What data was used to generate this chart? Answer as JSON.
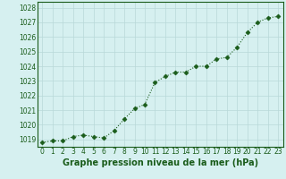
{
  "x": [
    0,
    1,
    2,
    3,
    4,
    5,
    6,
    7,
    8,
    9,
    10,
    11,
    12,
    13,
    14,
    15,
    16,
    17,
    18,
    19,
    20,
    21,
    22,
    23
  ],
  "y": [
    1018.8,
    1018.9,
    1018.9,
    1019.2,
    1019.3,
    1019.2,
    1019.1,
    1019.6,
    1020.4,
    1021.1,
    1021.4,
    1022.9,
    1023.3,
    1023.6,
    1023.6,
    1024.0,
    1024.0,
    1024.5,
    1024.6,
    1025.3,
    1026.3,
    1027.0,
    1027.3,
    1027.4
  ],
  "line_color": "#1a5c1a",
  "marker": "D",
  "marker_size": 2.5,
  "background_color": "#d6f0f0",
  "grid_color": "#b8d8d8",
  "xlabel": "Graphe pression niveau de la mer (hPa)",
  "xlabel_color": "#1a5c1a",
  "ylabel_ticks": [
    1019,
    1020,
    1021,
    1022,
    1023,
    1024,
    1025,
    1026,
    1027,
    1028
  ],
  "xtick_labels": [
    "0",
    "1",
    "2",
    "3",
    "4",
    "5",
    "6",
    "7",
    "8",
    "9",
    "10",
    "11",
    "12",
    "13",
    "14",
    "15",
    "16",
    "17",
    "18",
    "19",
    "20",
    "21",
    "22",
    "23"
  ],
  "ylim": [
    1018.5,
    1028.4
  ],
  "xlim": [
    -0.5,
    23.5
  ],
  "tick_color": "#1a5c1a",
  "tick_fontsize": 5.5,
  "xlabel_fontsize": 7.0,
  "border_color": "#1a5c1a",
  "line_width": 0.8
}
